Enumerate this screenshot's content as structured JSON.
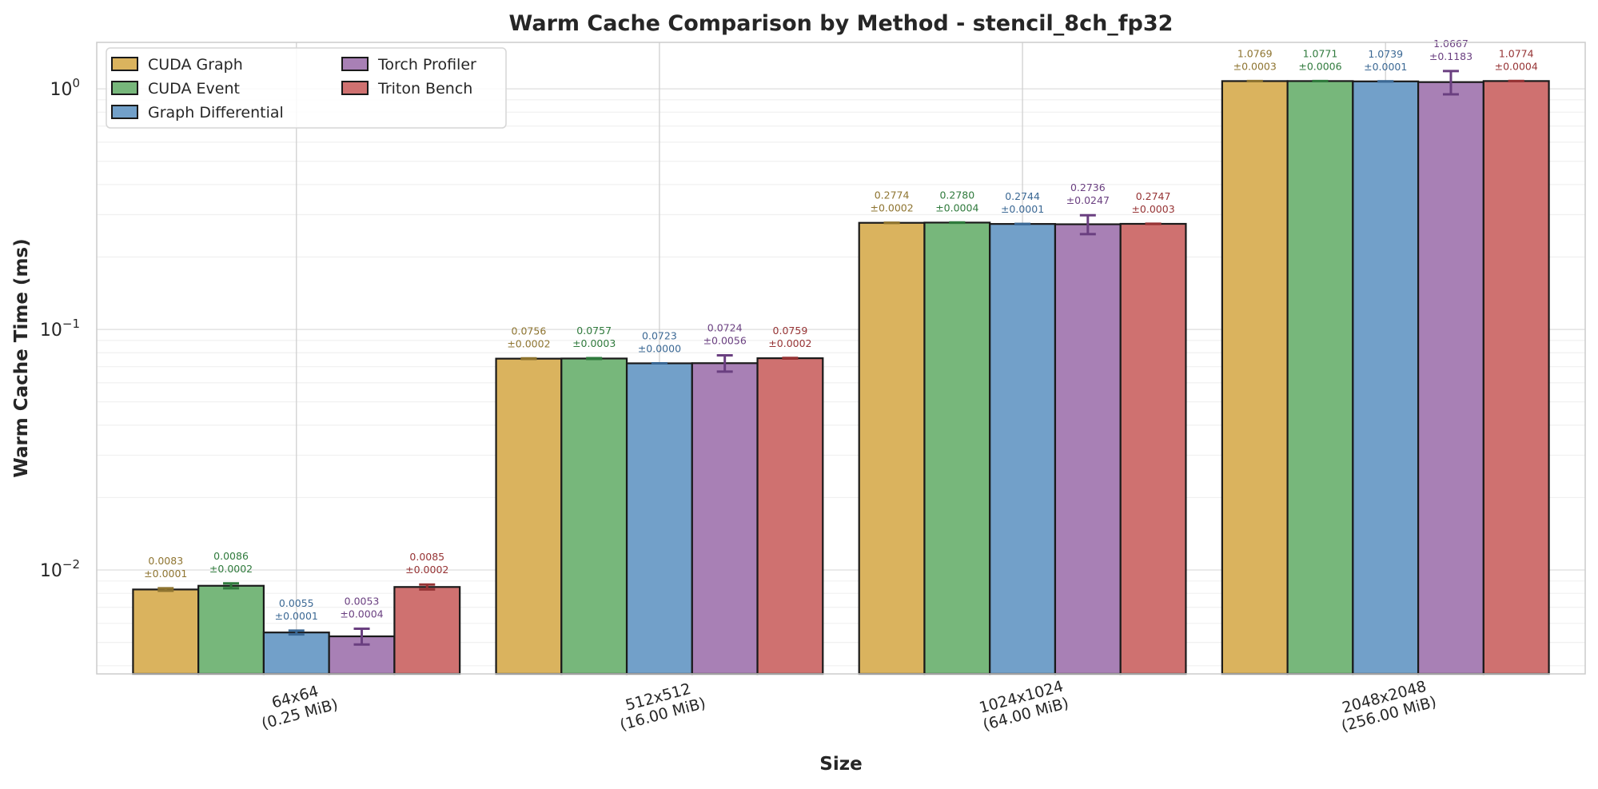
{
  "chart_data": {
    "type": "bar",
    "title": "Warm Cache Comparison by Method - stencil_8ch_fp32",
    "xlabel": "Size",
    "ylabel": "Warm Cache Time (ms)",
    "yscale": "log",
    "ylim": [
      0.0037,
      1.56
    ],
    "yticks": [
      {
        "value": 0.01,
        "base": "10",
        "exp": "−2"
      },
      {
        "value": 0.1,
        "base": "10",
        "exp": "−1"
      },
      {
        "value": 1,
        "base": "10",
        "exp": "0"
      }
    ],
    "categories": [
      {
        "line1": "64x64",
        "line2": "(0.25 MiB)"
      },
      {
        "line1": "512x512",
        "line2": "(16.00 MiB)"
      },
      {
        "line1": "1024x1024",
        "line2": "(64.00 MiB)"
      },
      {
        "line1": "2048x2048",
        "line2": "(256.00 MiB)"
      }
    ],
    "grid": true,
    "legend_placement": "top-left",
    "series": [
      {
        "name": "CUDA Graph",
        "color": "#DAB35E",
        "dark": "#8E7430",
        "values": [
          0.0083,
          0.0756,
          0.2774,
          1.0769
        ],
        "errors": [
          0.0001,
          0.0002,
          0.0002,
          0.0003
        ],
        "labels": [
          "0.0083",
          "0.0756",
          "0.2774",
          "1.0769"
        ],
        "error_labels": [
          "±0.0001",
          "±0.0002",
          "±0.0002",
          "±0.0003"
        ]
      },
      {
        "name": "CUDA Event",
        "color": "#77B77B",
        "dark": "#2F7A3C",
        "values": [
          0.0086,
          0.0757,
          0.278,
          1.0771
        ],
        "errors": [
          0.0002,
          0.0003,
          0.0004,
          0.0006
        ],
        "labels": [
          "0.0086",
          "0.0757",
          "0.2780",
          "1.0771"
        ],
        "error_labels": [
          "±0.0002",
          "±0.0003",
          "±0.0004",
          "±0.0006"
        ]
      },
      {
        "name": "Graph Differential",
        "color": "#72A0C9",
        "dark": "#3B6894",
        "values": [
          0.0055,
          0.0723,
          0.2744,
          1.0739
        ],
        "errors": [
          0.0001,
          0.0,
          0.0001,
          0.0001
        ],
        "labels": [
          "0.0055",
          "0.0723",
          "0.2744",
          "1.0739"
        ],
        "error_labels": [
          "±0.0001",
          "±0.0000",
          "±0.0001",
          "±0.0001"
        ]
      },
      {
        "name": "Torch Profiler",
        "color": "#A880B5",
        "dark": "#6A3F80",
        "values": [
          0.0053,
          0.0724,
          0.2736,
          1.0667
        ],
        "errors": [
          0.0004,
          0.0056,
          0.0247,
          0.1183
        ],
        "labels": [
          "0.0053",
          "0.0724",
          "0.2736",
          "1.0667"
        ],
        "error_labels": [
          "±0.0004",
          "±0.0056",
          "±0.0247",
          "±0.1183"
        ]
      },
      {
        "name": "Triton Bench",
        "color": "#CF7170",
        "dark": "#963334",
        "values": [
          0.0085,
          0.0759,
          0.2747,
          1.0774
        ],
        "errors": [
          0.0002,
          0.0002,
          0.0003,
          0.0004
        ],
        "labels": [
          "0.0085",
          "0.0759",
          "0.2747",
          "1.0774"
        ],
        "error_labels": [
          "±0.0002",
          "±0.0002",
          "±0.0003",
          "±0.0004"
        ]
      }
    ]
  }
}
